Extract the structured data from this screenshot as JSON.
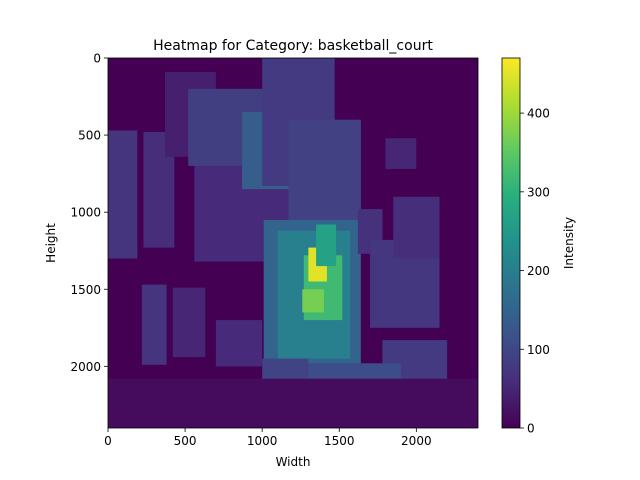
{
  "chart_data": {
    "type": "heatmap",
    "title": "Heatmap for Category: basketball_court",
    "xlabel": "Width",
    "ylabel": "Height",
    "xlim": [
      0,
      2400
    ],
    "ylim": [
      2400,
      0
    ],
    "x_ticks": [
      0,
      500,
      1000,
      1500,
      2000
    ],
    "y_ticks": [
      0,
      500,
      1000,
      1500,
      2000
    ],
    "colormap": "viridis",
    "grid": false,
    "colorbar": {
      "label": "Intensity",
      "min": 0,
      "max": 470,
      "ticks": [
        0,
        100,
        200,
        300,
        400
      ]
    },
    "regions": [
      {
        "x0": 0,
        "y0": 0,
        "x1": 2400,
        "y1": 2400,
        "v": 0
      },
      {
        "x0": 0,
        "y0": 470,
        "x1": 190,
        "y1": 1300,
        "v": 70
      },
      {
        "x0": 230,
        "y0": 480,
        "x1": 430,
        "y1": 1230,
        "v": 60
      },
      {
        "x0": 220,
        "y0": 1470,
        "x1": 380,
        "y1": 1990,
        "v": 70
      },
      {
        "x0": 420,
        "y0": 1490,
        "x1": 630,
        "y1": 1940,
        "v": 50
      },
      {
        "x0": 560,
        "y0": 550,
        "x1": 1280,
        "y1": 1320,
        "v": 55
      },
      {
        "x0": 370,
        "y0": 90,
        "x1": 700,
        "y1": 640,
        "v": 40
      },
      {
        "x0": 520,
        "y0": 200,
        "x1": 1040,
        "y1": 700,
        "v": 85
      },
      {
        "x0": 870,
        "y0": 350,
        "x1": 1240,
        "y1": 850,
        "v": 140
      },
      {
        "x0": 1000,
        "y0": 0,
        "x1": 1470,
        "y1": 830,
        "v": 80
      },
      {
        "x0": 1170,
        "y0": 400,
        "x1": 1640,
        "y1": 1100,
        "v": 90
      },
      {
        "x0": 1010,
        "y0": 1050,
        "x1": 1640,
        "y1": 2060,
        "v": 150
      },
      {
        "x0": 1100,
        "y0": 1120,
        "x1": 1570,
        "y1": 1950,
        "v": 200
      },
      {
        "x0": 1270,
        "y0": 1280,
        "x1": 1520,
        "y1": 1700,
        "v": 320
      },
      {
        "x0": 1300,
        "y0": 1230,
        "x1": 1420,
        "y1": 1450,
        "v": 450
      },
      {
        "x0": 1260,
        "y0": 1500,
        "x1": 1400,
        "y1": 1650,
        "v": 370
      },
      {
        "x0": 1350,
        "y0": 1080,
        "x1": 1480,
        "y1": 1350,
        "v": 270
      },
      {
        "x0": 1620,
        "y0": 980,
        "x1": 1780,
        "y1": 1270,
        "v": 65
      },
      {
        "x0": 1700,
        "y0": 1180,
        "x1": 2150,
        "y1": 1750,
        "v": 75
      },
      {
        "x0": 1850,
        "y0": 900,
        "x1": 2150,
        "y1": 1300,
        "v": 60
      },
      {
        "x0": 1780,
        "y0": 1830,
        "x1": 2200,
        "y1": 2400,
        "v": 80
      },
      {
        "x0": 1170,
        "y0": 1980,
        "x1": 1900,
        "y1": 2400,
        "v": 110
      },
      {
        "x0": 1000,
        "y0": 1950,
        "x1": 1300,
        "y1": 2150,
        "v": 95
      },
      {
        "x0": 1800,
        "y0": 520,
        "x1": 2000,
        "y1": 720,
        "v": 50
      },
      {
        "x0": 700,
        "y0": 1700,
        "x1": 1000,
        "y1": 2000,
        "v": 55
      },
      {
        "x0": 0,
        "y0": 2080,
        "x1": 2400,
        "y1": 2400,
        "v": 15
      }
    ]
  }
}
